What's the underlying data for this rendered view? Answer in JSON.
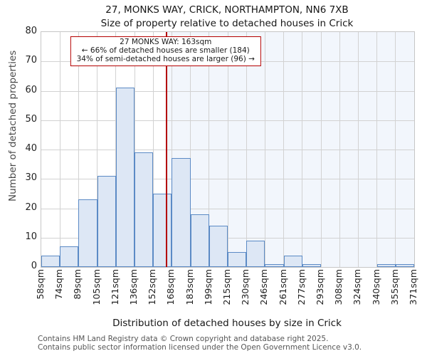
{
  "header": {
    "title": "27, MONKS WAY, CRICK, NORTHAMPTON, NN6 7XB",
    "subtitle": "Size of property relative to detached houses in Crick"
  },
  "annotation": {
    "line1": "27 MONKS WAY: 163sqm",
    "line2": "← 66% of detached houses are smaller (184)",
    "line3": "34% of semi-detached houses are larger (96) →"
  },
  "chart_data": {
    "type": "bar",
    "title": "27, MONKS WAY, CRICK, NORTHAMPTON, NN6 7XB",
    "subtitle": "Size of property relative to detached houses in Crick",
    "xlabel": "Distribution of detached houses by size in Crick",
    "ylabel": "Number of detached properties",
    "bin_edges_sqm": [
      58,
      74,
      89,
      105,
      121,
      136,
      152,
      168,
      183,
      199,
      215,
      230,
      246,
      261,
      277,
      293,
      308,
      324,
      340,
      355,
      371
    ],
    "tick_suffix": "sqm",
    "values": [
      4,
      7,
      23,
      31,
      61,
      39,
      25,
      37,
      18,
      14,
      5,
      9,
      1,
      4,
      1,
      0,
      0,
      0,
      1,
      1
    ],
    "ylim": [
      0,
      80
    ],
    "ytick_step": 10,
    "grid": true,
    "marker_value_sqm": 163,
    "shade_right_of_marker": true,
    "colors": {
      "bar_fill": "#dde7f5",
      "bar_edge": "#5b8ac5",
      "marker_red": "#b40000",
      "shade": "#f2f6fc",
      "gridline": "#d2d2d2"
    }
  },
  "footer": {
    "line1": "Contains HM Land Registry data © Crown copyright and database right 2025.",
    "line2": "Contains public sector information licensed under the Open Government Licence v3.0."
  }
}
